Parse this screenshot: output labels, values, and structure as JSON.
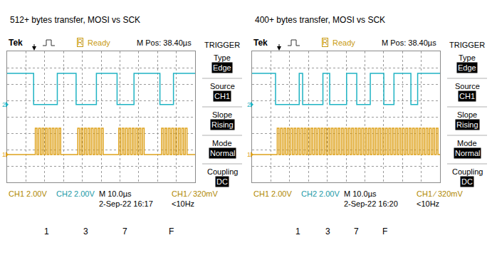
{
  "chart_data": [
    {
      "type": "line",
      "title": "512+ bytes transfer, MOSI vs SCK",
      "header": [
        "Tek",
        "R",
        "Ready",
        "M Pos: 38.40µs"
      ],
      "menu": {
        "title": "TRIGGER",
        "items": [
          {
            "label": "Type",
            "value": "Edge"
          },
          {
            "label": "Source",
            "value": "CH1"
          },
          {
            "label": "Slope",
            "value": "Rising"
          },
          {
            "label": "Mode",
            "value": "Normal"
          },
          {
            "label": "Coupling",
            "value": "DC"
          }
        ]
      },
      "footer": [
        "CH1 2.00V",
        "CH2 2.00V",
        "M 10.0µs",
        "CH1 ∕ 320mV",
        "2-Sep-22 16:17",
        "<10Hz"
      ],
      "byte_labels": [
        "1",
        "3",
        "7",
        "F"
      ],
      "xlim": [
        0,
        100
      ],
      "ylim": [
        -8,
        8
      ],
      "xticks": [
        0,
        10,
        20,
        30,
        40,
        50,
        60,
        70,
        80,
        90,
        100
      ],
      "yticks": [
        -8,
        -6,
        -4,
        -2,
        0,
        2,
        4,
        6,
        8
      ],
      "grid": true,
      "tick_labels": false,
      "line_style": "step",
      "series": [
        {
          "name": "2",
          "color": "#1fb3c3",
          "x": [
            0,
            14.1,
            26.7,
            36.7,
            47.5,
            58.5,
            67.5,
            81.3,
            88.5,
            100
          ],
          "values": [
            5.3,
            1.5,
            5.3,
            1.5,
            5.3,
            1.5,
            5.3,
            1.5,
            5.3,
            5.3
          ]
        },
        {
          "name": "1",
          "color": "#dea21c",
          "x": [
            0,
            15.0,
            15.9,
            16.8,
            17.7,
            18.6,
            19.5,
            20.4,
            21.3,
            22.2,
            23.1,
            24.0,
            24.9,
            25.8,
            26.7,
            27.6,
            28.5,
            37.6,
            38.5,
            39.4,
            40.3,
            41.2,
            42.1,
            43.0,
            43.9,
            44.8,
            45.7,
            46.6,
            47.5,
            48.4,
            49.3,
            50.2,
            51.1,
            59.4,
            60.3,
            61.2,
            62.1,
            63.0,
            63.9,
            64.8,
            65.7,
            66.6,
            67.5,
            68.4,
            69.3,
            70.2,
            71.1,
            72.0,
            72.9,
            82.2,
            83.1,
            84.0,
            84.9,
            85.8,
            86.7,
            87.6,
            88.5,
            89.4,
            90.3,
            91.2,
            92.1,
            93.0,
            93.9,
            94.8,
            95.7,
            100
          ],
          "values": [
            -4.6,
            -1.4,
            -4.6,
            -1.4,
            -4.6,
            -1.4,
            -4.6,
            -1.4,
            -4.6,
            -1.4,
            -4.6,
            -1.4,
            -4.6,
            -1.4,
            -4.6,
            -1.4,
            -4.6,
            -1.4,
            -4.6,
            -1.4,
            -4.6,
            -1.4,
            -4.6,
            -1.4,
            -4.6,
            -1.4,
            -4.6,
            -1.4,
            -4.6,
            -1.4,
            -4.6,
            -1.4,
            -4.6,
            -1.4,
            -4.6,
            -1.4,
            -4.6,
            -1.4,
            -4.6,
            -1.4,
            -4.6,
            -1.4,
            -4.6,
            -1.4,
            -4.6,
            -1.4,
            -4.6,
            -1.4,
            -4.6,
            -1.4,
            -4.6,
            -1.4,
            -4.6,
            -1.4,
            -4.6,
            -1.4,
            -4.6,
            -1.4,
            -4.6,
            -1.4,
            -4.6,
            -1.4,
            -4.6,
            -1.4,
            -4.6,
            -4.6
          ]
        }
      ]
    },
    {
      "type": "line",
      "title": "400+ bytes transfer, MOSI vs SCK",
      "header": [
        "Tek",
        "R",
        "Ready",
        "M Pos: 38.40µs"
      ],
      "menu": {
        "title": "TRIGGER",
        "items": [
          {
            "label": "Type",
            "value": "Edge"
          },
          {
            "label": "Source",
            "value": "CH1"
          },
          {
            "label": "Slope",
            "value": "Rising"
          },
          {
            "label": "Mode",
            "value": "Normal"
          },
          {
            "label": "Coupling",
            "value": "DC"
          }
        ]
      },
      "footer": [
        "CH1 2.00V",
        "CH2 2.00V",
        "M 10.0µs",
        "CH1 ∕ 320mV",
        "2-Sep-22 16:20",
        "<10Hz"
      ],
      "byte_labels": [
        "1",
        "3",
        "7",
        "F"
      ],
      "xlim": [
        0,
        100
      ],
      "ylim": [
        -8,
        8
      ],
      "xticks": [
        0,
        10,
        20,
        30,
        40,
        50,
        60,
        70,
        80,
        90,
        100
      ],
      "yticks": [
        -8,
        -6,
        -4,
        -2,
        0,
        2,
        4,
        6,
        8
      ],
      "grid": true,
      "tick_labels": false,
      "line_style": "step",
      "series": [
        {
          "name": "2",
          "color": "#1fb3c3",
          "x": [
            0,
            12.5,
            25.1,
            26.9,
            37.7,
            41.3,
            50.3,
            55.7,
            62.9,
            70.1,
            75.5,
            84.5,
            88.1,
            100
          ],
          "values": [
            5.3,
            1.5,
            5.3,
            1.5,
            5.3,
            1.5,
            5.3,
            1.5,
            5.3,
            1.5,
            5.3,
            1.5,
            5.3,
            5.3
          ]
        },
        {
          "name": "1",
          "color": "#dea21c",
          "x": [
            0,
            13.4,
            14.3,
            15.2,
            16.1,
            17.0,
            17.9,
            18.8,
            19.7,
            20.6,
            21.5,
            22.4,
            23.3,
            24.2,
            25.1,
            26.0,
            26.9,
            27.8,
            28.7,
            29.6,
            30.5,
            31.4,
            32.3,
            33.2,
            34.1,
            35.0,
            35.9,
            36.8,
            37.7,
            38.6,
            39.5,
            40.4,
            41.3,
            42.2,
            43.1,
            44.0,
            44.9,
            45.8,
            46.7,
            47.6,
            48.5,
            49.4,
            50.3,
            51.2,
            52.1,
            53.0,
            53.9,
            54.8,
            55.7,
            56.6,
            57.5,
            58.4,
            59.3,
            60.2,
            61.1,
            62.0,
            62.9,
            63.8,
            64.7,
            65.6,
            66.5,
            67.4,
            68.3,
            69.2,
            70.1,
            71.0,
            71.9,
            72.8,
            73.7,
            74.6,
            75.5,
            76.4,
            77.3,
            78.2,
            79.1,
            80.0,
            80.9,
            81.8,
            82.7,
            83.6,
            84.5,
            85.4,
            86.3,
            87.2,
            88.1,
            89.0,
            89.9,
            90.8,
            91.7,
            92.6,
            93.5,
            94.4,
            95.3,
            96.2,
            97.1,
            98.0,
            98.9,
            100
          ],
          "values": [
            -4.6,
            -1.4,
            -4.6,
            -1.4,
            -4.6,
            -1.4,
            -4.6,
            -1.4,
            -4.6,
            -1.4,
            -4.6,
            -1.4,
            -4.6,
            -1.4,
            -4.6,
            -1.4,
            -4.6,
            -1.4,
            -4.6,
            -1.4,
            -4.6,
            -1.4,
            -4.6,
            -1.4,
            -4.6,
            -1.4,
            -4.6,
            -1.4,
            -4.6,
            -1.4,
            -4.6,
            -1.4,
            -4.6,
            -1.4,
            -4.6,
            -1.4,
            -4.6,
            -1.4,
            -4.6,
            -1.4,
            -4.6,
            -1.4,
            -4.6,
            -1.4,
            -4.6,
            -1.4,
            -4.6,
            -1.4,
            -4.6,
            -1.4,
            -4.6,
            -1.4,
            -4.6,
            -1.4,
            -4.6,
            -1.4,
            -4.6,
            -1.4,
            -4.6,
            -1.4,
            -4.6,
            -1.4,
            -4.6,
            -1.4,
            -4.6,
            -1.4,
            -4.6,
            -1.4,
            -4.6,
            -1.4,
            -4.6,
            -1.4,
            -4.6,
            -1.4,
            -4.6,
            -1.4,
            -4.6,
            -1.4,
            -4.6,
            -1.4,
            -4.6,
            -1.4,
            -4.6,
            -1.4,
            -4.6,
            -1.4,
            -4.6,
            -1.4,
            -4.6,
            -1.4,
            -4.6,
            -1.4,
            -4.6,
            -1.4,
            -4.6,
            -1.4,
            -4.6,
            -4.6
          ]
        }
      ]
    }
  ]
}
